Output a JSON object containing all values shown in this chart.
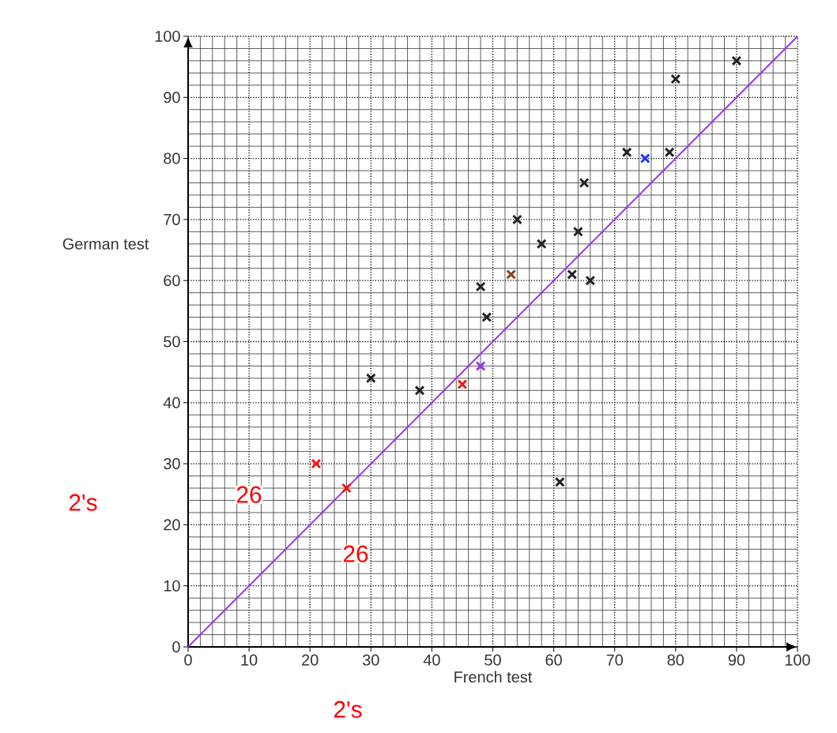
{
  "chart_data": {
    "type": "scatter",
    "xlabel": "French test",
    "ylabel": "German test",
    "xlim": [
      0,
      100
    ],
    "ylim": [
      0,
      100
    ],
    "xticks": [
      0,
      10,
      20,
      30,
      40,
      50,
      60,
      70,
      80,
      90,
      100
    ],
    "yticks": [
      0,
      10,
      20,
      30,
      40,
      50,
      60,
      70,
      80,
      90,
      100
    ],
    "grid": true,
    "marker": "cross",
    "series": [
      {
        "color": "#222222",
        "x": [
          90,
          80,
          72,
          79,
          65,
          54,
          64,
          58,
          48,
          63,
          66,
          49,
          30,
          38,
          61
        ],
        "values": [
          96,
          93,
          81,
          81,
          76,
          70,
          68,
          66,
          59,
          61,
          60,
          54,
          44,
          42,
          27
        ]
      },
      {
        "type": "line",
        "color": "#9933ee",
        "marker": "none",
        "line_style": "solid",
        "x": [
          0,
          100
        ],
        "values": [
          0,
          100
        ]
      },
      {
        "color": "#1a3cff",
        "x": [
          75
        ],
        "values": [
          80
        ]
      },
      {
        "color": "#8b4513",
        "x": [
          53
        ],
        "values": [
          61
        ]
      },
      {
        "color": "#9933ee",
        "x": [
          48
        ],
        "values": [
          46
        ]
      },
      {
        "color": "#ff1111",
        "x": [
          45,
          21,
          26
        ],
        "values": [
          43,
          30,
          26
        ]
      }
    ],
    "annotations": [
      "26",
      "26",
      "2's",
      "2's"
    ]
  }
}
